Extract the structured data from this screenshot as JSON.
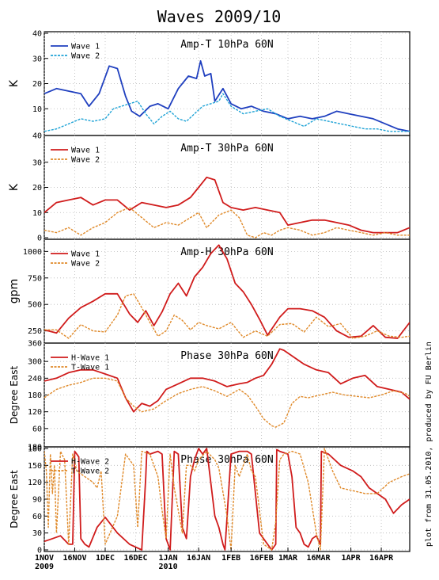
{
  "title": "Waves 2009/10",
  "credit": "plot from 31.05.2010, produced by FU Berlin",
  "x_axis": {
    "tick_labels": [
      "1NOV",
      "16NOV",
      "1DEC",
      "16DEC",
      "1JAN",
      "16JAN",
      "1FEB",
      "16FEB",
      "1MAR",
      "16MAR",
      "1APR",
      "16APR"
    ],
    "tick_days": [
      0,
      15,
      30,
      45,
      61,
      76,
      92,
      107,
      120,
      135,
      151,
      166
    ],
    "year_labels": [
      {
        "day": 0,
        "text": "2009"
      },
      {
        "day": 61,
        "text": "2010"
      }
    ],
    "range_days": [
      0,
      180
    ]
  },
  "chart_data": [
    {
      "type": "line",
      "title": "Amp-T 10hPa 60N",
      "ylabel": "K",
      "ylim": [
        0,
        40
      ],
      "yticks": [
        10,
        20,
        30,
        40
      ],
      "ytick_labels": [
        "10",
        "20",
        "30",
        "40"
      ],
      "bottom_label": "40",
      "grid": true,
      "legend": "top-left",
      "series": [
        {
          "name": "Wave 1",
          "color": "#1f3fbf",
          "style": "solid",
          "x": [
            0,
            6,
            12,
            18,
            22,
            27,
            32,
            36,
            40,
            43,
            47,
            52,
            56,
            61,
            66,
            71,
            75,
            77,
            79,
            82,
            84,
            88,
            92,
            97,
            102,
            108,
            114,
            120,
            126,
            132,
            138,
            144,
            150,
            156,
            162,
            168,
            174,
            180
          ],
          "y": [
            16,
            18,
            17,
            16,
            11,
            16,
            27,
            26,
            15,
            9,
            7,
            11,
            12,
            10,
            18,
            23,
            22,
            29,
            23,
            24,
            13,
            18,
            12,
            10,
            11,
            9,
            8,
            6,
            7,
            6,
            7,
            9,
            8,
            7,
            6,
            4,
            2,
            1
          ]
        },
        {
          "name": "Wave 2",
          "color": "#1fa3d6",
          "style": "dashed",
          "x": [
            0,
            6,
            12,
            18,
            24,
            30,
            34,
            38,
            42,
            46,
            50,
            54,
            58,
            62,
            66,
            70,
            74,
            78,
            82,
            86,
            88,
            92,
            98,
            104,
            110,
            116,
            122,
            128,
            134,
            140,
            146,
            152,
            158,
            164,
            170,
            176,
            180
          ],
          "y": [
            1,
            2,
            4,
            6,
            5,
            6,
            10,
            11,
            12,
            13,
            8,
            4,
            7,
            9,
            6,
            5,
            8,
            11,
            12,
            13,
            16,
            11,
            8,
            9,
            10,
            7,
            5,
            3,
            6,
            5,
            4,
            3,
            2,
            2,
            1,
            1,
            1
          ]
        }
      ]
    },
    {
      "type": "line",
      "title": "Amp-T 30hPa 60N",
      "ylabel": "K",
      "ylim": [
        0,
        40
      ],
      "yticks": [
        0,
        10,
        20,
        30
      ],
      "ytick_labels": [
        "0",
        "10",
        "20",
        "30"
      ],
      "grid": true,
      "legend": "top-left",
      "series": [
        {
          "name": "Wave 1",
          "color": "#d01c1c",
          "style": "solid",
          "x": [
            0,
            6,
            12,
            18,
            24,
            30,
            36,
            42,
            48,
            54,
            60,
            66,
            72,
            76,
            80,
            84,
            88,
            92,
            98,
            104,
            110,
            116,
            120,
            126,
            132,
            138,
            144,
            150,
            156,
            162,
            168,
            174,
            180
          ],
          "y": [
            10,
            14,
            15,
            16,
            13,
            15,
            15,
            11,
            14,
            13,
            12,
            13,
            16,
            20,
            24,
            23,
            14,
            12,
            11,
            12,
            11,
            10,
            5,
            6,
            7,
            7,
            6,
            5,
            3,
            2,
            2,
            2,
            4
          ]
        },
        {
          "name": "Wave 2",
          "color": "#e08a2a",
          "style": "dashed",
          "x": [
            0,
            6,
            12,
            18,
            24,
            30,
            36,
            42,
            48,
            54,
            60,
            66,
            72,
            76,
            80,
            86,
            92,
            96,
            100,
            104,
            108,
            112,
            116,
            120,
            126,
            132,
            138,
            144,
            150,
            156,
            162,
            168,
            174,
            180
          ],
          "y": [
            3,
            2,
            4,
            1,
            4,
            6,
            10,
            12,
            8,
            4,
            6,
            5,
            8,
            10,
            4,
            9,
            11,
            8,
            1,
            0,
            2,
            1,
            3,
            4,
            3,
            1,
            2,
            4,
            3,
            2,
            1,
            2,
            1,
            1
          ]
        }
      ]
    },
    {
      "type": "line",
      "title": "Amp-H 30hPa 60N",
      "ylabel": "gpm",
      "ylim": [
        150,
        1100
      ],
      "yticks": [
        250,
        500,
        750,
        1000
      ],
      "ytick_labels": [
        "250",
        "500",
        "750",
        "1000"
      ],
      "bottom_label": "360",
      "grid": true,
      "legend": "top-left",
      "series": [
        {
          "name": "Wave 1",
          "color": "#d01c1c",
          "style": "solid",
          "x": [
            0,
            6,
            12,
            18,
            24,
            30,
            36,
            42,
            46,
            50,
            54,
            58,
            62,
            66,
            70,
            74,
            78,
            82,
            86,
            90,
            94,
            98,
            102,
            106,
            110,
            116,
            120,
            126,
            132,
            138,
            144,
            150,
            156,
            162,
            168,
            174,
            180
          ],
          "y": [
            260,
            230,
            370,
            470,
            530,
            600,
            600,
            410,
            330,
            440,
            300,
            430,
            600,
            700,
            580,
            760,
            850,
            980,
            1060,
            930,
            700,
            620,
            500,
            360,
            210,
            380,
            460,
            460,
            440,
            380,
            250,
            190,
            200,
            300,
            190,
            180,
            330
          ]
        },
        {
          "name": "Wave 2",
          "color": "#e08a2a",
          "style": "dashed",
          "x": [
            0,
            6,
            12,
            18,
            24,
            30,
            36,
            40,
            44,
            48,
            52,
            56,
            60,
            64,
            68,
            72,
            76,
            80,
            86,
            92,
            98,
            104,
            110,
            116,
            122,
            128,
            134,
            140,
            146,
            152,
            158,
            164,
            170,
            176,
            180
          ],
          "y": [
            260,
            260,
            180,
            310,
            250,
            240,
            400,
            580,
            600,
            470,
            330,
            200,
            250,
            400,
            350,
            260,
            330,
            300,
            270,
            330,
            190,
            250,
            200,
            310,
            320,
            240,
            380,
            290,
            320,
            180,
            200,
            250,
            200,
            190,
            200
          ]
        }
      ]
    },
    {
      "type": "line",
      "title": "Phase 30hPa 60N",
      "ylabel": "Degree East",
      "ylim": [
        0,
        360
      ],
      "yticks": [
        60,
        120,
        180,
        240,
        300
      ],
      "ytick_labels": [
        "60",
        "120",
        "180",
        "240",
        "300"
      ],
      "bottom_label": "180",
      "grid": true,
      "legend": "top-left",
      "series": [
        {
          "name": "H-Wave 1",
          "color": "#d01c1c",
          "style": "solid",
          "x": [
            0,
            6,
            12,
            18,
            24,
            30,
            36,
            40,
            44,
            48,
            52,
            56,
            60,
            66,
            72,
            78,
            84,
            90,
            96,
            100,
            104,
            108,
            112,
            116,
            118,
            122,
            128,
            134,
            140,
            146,
            152,
            158,
            164,
            170,
            176,
            180
          ],
          "y": [
            230,
            240,
            260,
            270,
            270,
            255,
            240,
            170,
            120,
            150,
            140,
            160,
            200,
            220,
            240,
            240,
            230,
            210,
            220,
            225,
            240,
            250,
            290,
            345,
            340,
            320,
            290,
            270,
            260,
            220,
            240,
            250,
            210,
            200,
            190,
            165
          ]
        },
        {
          "name": "T-Wave 1",
          "color": "#e08a2a",
          "style": "dashed",
          "x": [
            0,
            6,
            12,
            18,
            24,
            30,
            36,
            40,
            44,
            48,
            54,
            60,
            66,
            72,
            78,
            84,
            90,
            96,
            100,
            104,
            108,
            112,
            114,
            118,
            122,
            126,
            130,
            136,
            142,
            148,
            154,
            160,
            166,
            172,
            178,
            180
          ],
          "y": [
            170,
            200,
            215,
            225,
            240,
            240,
            230,
            170,
            140,
            120,
            130,
            160,
            185,
            200,
            210,
            195,
            175,
            200,
            180,
            140,
            95,
            70,
            65,
            80,
            150,
            175,
            170,
            180,
            190,
            180,
            175,
            170,
            180,
            195,
            185,
            175
          ]
        }
      ]
    },
    {
      "type": "line",
      "title": "Phase 30hPa 60N",
      "ylabel": "Degree East",
      "ylim": [
        0,
        180
      ],
      "yticks": [
        0,
        30,
        60,
        90,
        120,
        150,
        180
      ],
      "ytick_labels": [
        "0",
        "30",
        "60",
        "90",
        "120",
        "150",
        "180"
      ],
      "grid": true,
      "legend": "top-left",
      "series": [
        {
          "name": "H-Wave 2",
          "color": "#d01c1c",
          "style": "solid",
          "x": [
            0,
            4,
            8,
            12,
            14,
            15,
            16,
            17,
            18,
            20,
            22,
            26,
            30,
            36,
            42,
            48,
            50,
            50.5,
            52,
            56,
            58,
            60,
            61,
            62,
            64,
            66,
            68,
            70,
            72,
            74,
            76,
            78,
            80,
            84,
            86,
            88,
            89,
            92,
            96,
            100,
            102,
            106,
            108,
            110,
            112,
            114,
            114.5,
            116,
            120,
            122,
            124,
            126,
            128,
            130,
            132,
            134,
            136,
            136.5,
            140,
            146,
            152,
            156,
            160,
            164,
            168,
            172,
            176,
            180
          ],
          "y": [
            15,
            20,
            25,
            10,
            10,
            175,
            170,
            165,
            20,
            10,
            5,
            40,
            58,
            30,
            10,
            0,
            130,
            175,
            170,
            175,
            170,
            20,
            10,
            0,
            175,
            170,
            40,
            20,
            130,
            160,
            180,
            170,
            180,
            60,
            40,
            10,
            0,
            170,
            175,
            175,
            170,
            30,
            20,
            10,
            0,
            10,
            178,
            175,
            170,
            130,
            40,
            30,
            10,
            5,
            20,
            25,
            10,
            175,
            170,
            150,
            140,
            130,
            110,
            100,
            90,
            65,
            80,
            90
          ]
        },
        {
          "name": "T-Wave 2",
          "color": "#e08a2a",
          "style": "dashed",
          "x": [
            0,
            1,
            2,
            3,
            4,
            5,
            6,
            8,
            10,
            12,
            14,
            16,
            20,
            24,
            26,
            28,
            30,
            36,
            40,
            44,
            46,
            48,
            52,
            56,
            58,
            60,
            62,
            64,
            68,
            70,
            72,
            74,
            76,
            80,
            84,
            86,
            90,
            92,
            94,
            96,
            100,
            102,
            104,
            108,
            112,
            114,
            116,
            118,
            122,
            126,
            130,
            134,
            136,
            138,
            142,
            146,
            152,
            158,
            164,
            170,
            176,
            180
          ],
          "y": [
            175,
            140,
            40,
            170,
            100,
            150,
            30,
            175,
            160,
            10,
            170,
            140,
            130,
            120,
            110,
            140,
            10,
            60,
            170,
            150,
            40,
            175,
            170,
            130,
            70,
            20,
            170,
            110,
            30,
            150,
            150,
            140,
            160,
            175,
            160,
            145,
            60,
            0,
            150,
            130,
            170,
            140,
            130,
            10,
            0,
            50,
            160,
            170,
            175,
            170,
            120,
            30,
            0,
            180,
            140,
            110,
            105,
            100,
            100,
            120,
            130,
            135
          ]
        }
      ]
    }
  ]
}
